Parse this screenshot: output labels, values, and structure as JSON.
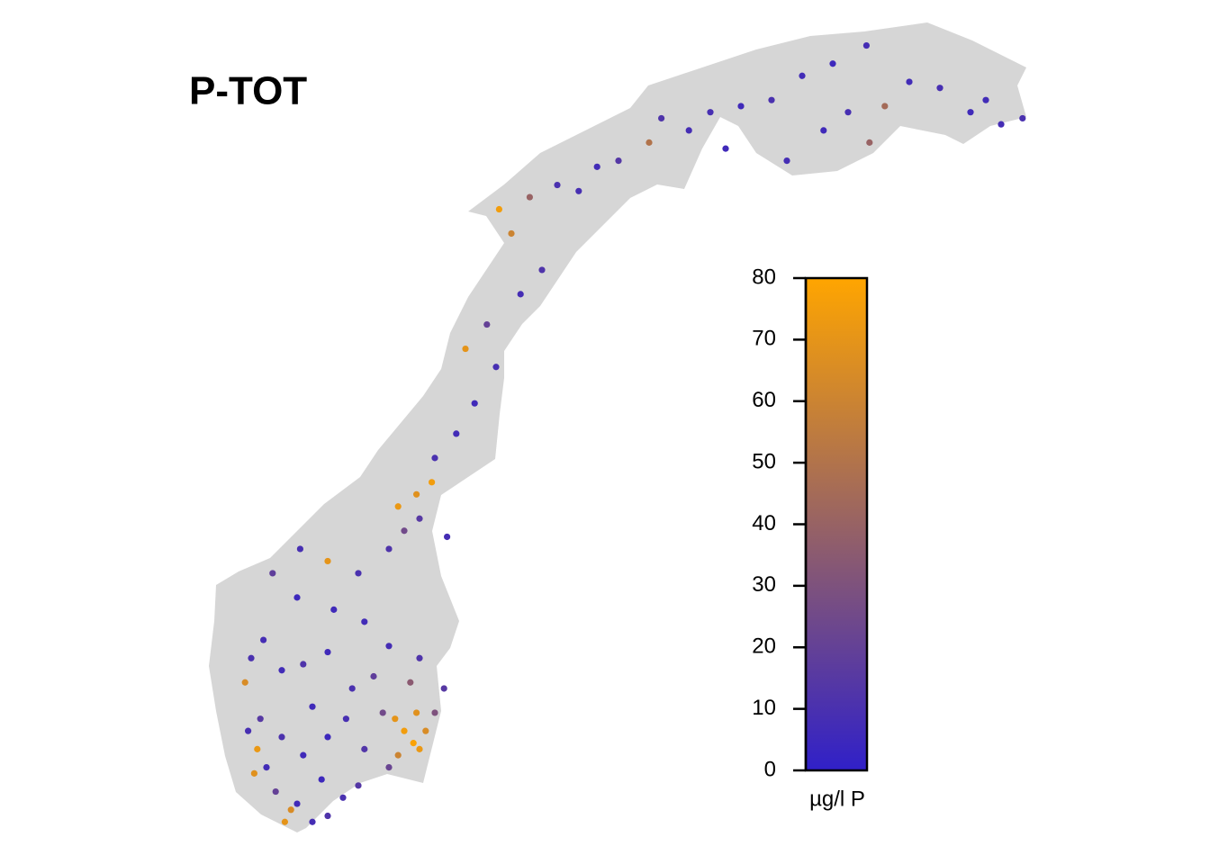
{
  "chart_data": {
    "type": "map",
    "title": "P-TOT",
    "color_low": "#3020c8",
    "color_high": "#ffa500",
    "land_color": "#d6d6d6",
    "colorbar": {
      "lim": [
        0,
        80
      ],
      "ticks": [
        0,
        10,
        20,
        30,
        40,
        50,
        60,
        70,
        80
      ],
      "label": "µg/l P"
    },
    "lon": [
      7.5,
      8.0,
      7.0,
      6.6,
      6.8,
      8.5,
      9.0,
      7.8,
      6.3,
      6.0,
      5.7,
      5.6,
      5.4,
      5.8,
      6.5,
      7.2,
      8.0,
      8.6,
      9.2,
      7.5,
      5.3,
      5.5,
      5.9,
      6.5,
      7.2,
      8.0,
      8.8,
      9.5,
      9.8,
      10.2,
      10.5,
      10.8,
      11.0,
      10.9,
      11.2,
      10.3,
      10.0,
      11.5,
      11.8,
      10.7,
      11.0,
      10.0,
      9.2,
      8.2,
      7.0,
      6.2,
      7.1,
      8.0,
      9.0,
      10.0,
      10.5,
      10.3,
      10.9,
      11.4,
      11.0,
      11.9,
      11.5,
      12.2,
      12.8,
      13.5,
      12.5,
      13.2,
      14.3,
      15.0,
      14.0,
      13.6,
      14.6,
      15.5,
      16.2,
      16.8,
      17.5,
      18.5,
      18.9,
      19.8,
      20.5,
      21.5,
      22.5,
      23.5,
      24.5,
      25.6,
      25.0,
      24.2,
      26.2,
      27.0,
      28.0,
      29.0,
      30.0,
      30.7,
      29.5,
      25.7,
      23.0,
      21.0
    ],
    "lat": [
      58.1,
      58.2,
      58.4,
      58.1,
      58.3,
      58.5,
      58.7,
      58.8,
      58.6,
      59.0,
      59.3,
      58.9,
      59.6,
      59.8,
      59.5,
      59.2,
      59.5,
      59.8,
      59.3,
      60.0,
      60.4,
      60.8,
      61.1,
      60.6,
      60.7,
      60.9,
      60.3,
      60.5,
      59.9,
      59.8,
      59.6,
      59.4,
      59.3,
      59.9,
      59.6,
      59.2,
      59.0,
      59.9,
      60.3,
      60.4,
      60.8,
      61.0,
      61.4,
      61.6,
      61.8,
      62.2,
      62.6,
      62.4,
      62.2,
      62.6,
      62.9,
      63.3,
      63.5,
      63.7,
      63.1,
      62.8,
      64.1,
      64.5,
      65.0,
      65.6,
      65.9,
      66.3,
      66.8,
      67.2,
      67.8,
      68.2,
      68.4,
      68.6,
      68.5,
      68.9,
      69.0,
      69.3,
      69.7,
      69.5,
      69.8,
      69.9,
      70.0,
      70.4,
      70.6,
      70.9,
      69.8,
      69.5,
      69.9,
      70.3,
      70.2,
      69.8,
      69.6,
      69.7,
      70.0,
      69.3,
      69.0,
      69.2
    ],
    "values": [
      8,
      12,
      6,
      70,
      65,
      10,
      14,
      5,
      20,
      7,
      72,
      68,
      9,
      15,
      11,
      6,
      5,
      9,
      13,
      6,
      65,
      10,
      8,
      7,
      12,
      6,
      10,
      18,
      25,
      70,
      75,
      78,
      72,
      68,
      65,
      60,
      22,
      30,
      15,
      35,
      12,
      8,
      7,
      6,
      5,
      18,
      9,
      70,
      10,
      12,
      25,
      72,
      68,
      75,
      15,
      8,
      10,
      7,
      6,
      9,
      70,
      20,
      8,
      12,
      60,
      75,
      40,
      10,
      9,
      7,
      14,
      50,
      12,
      8,
      9,
      6,
      10,
      7,
      5,
      8,
      9,
      6,
      45,
      7,
      9,
      6,
      8,
      10,
      7,
      40,
      8,
      6
    ]
  }
}
